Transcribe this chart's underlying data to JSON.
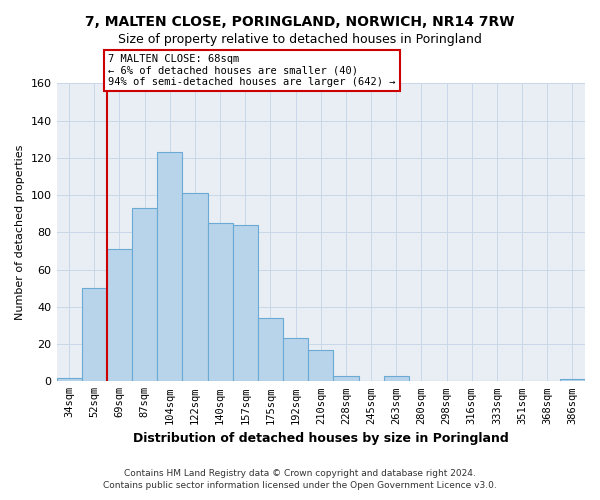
{
  "title": "7, MALTEN CLOSE, PORINGLAND, NORWICH, NR14 7RW",
  "subtitle": "Size of property relative to detached houses in Poringland",
  "xlabel": "Distribution of detached houses by size in Poringland",
  "ylabel": "Number of detached properties",
  "bar_labels": [
    "34sqm",
    "52sqm",
    "69sqm",
    "87sqm",
    "104sqm",
    "122sqm",
    "140sqm",
    "157sqm",
    "175sqm",
    "192sqm",
    "210sqm",
    "228sqm",
    "245sqm",
    "263sqm",
    "280sqm",
    "298sqm",
    "316sqm",
    "333sqm",
    "351sqm",
    "368sqm",
    "386sqm"
  ],
  "bar_heights": [
    2,
    50,
    71,
    93,
    123,
    101,
    85,
    84,
    34,
    23,
    17,
    3,
    0,
    3,
    0,
    0,
    0,
    0,
    0,
    0,
    1
  ],
  "bar_color": "#b8d4ea",
  "bar_edge_color": "#6aaad4",
  "ylim": [
    0,
    160
  ],
  "yticks": [
    0,
    20,
    40,
    60,
    80,
    100,
    120,
    140,
    160
  ],
  "red_line_x": 1.5,
  "marker_color": "#cc0000",
  "annotation_text": "7 MALTEN CLOSE: 68sqm\n← 6% of detached houses are smaller (40)\n94% of semi-detached houses are larger (642) →",
  "footer_line1": "Contains HM Land Registry data © Crown copyright and database right 2024.",
  "footer_line2": "Contains public sector information licensed under the Open Government Licence v3.0.",
  "bg_color": "#e8eef4"
}
